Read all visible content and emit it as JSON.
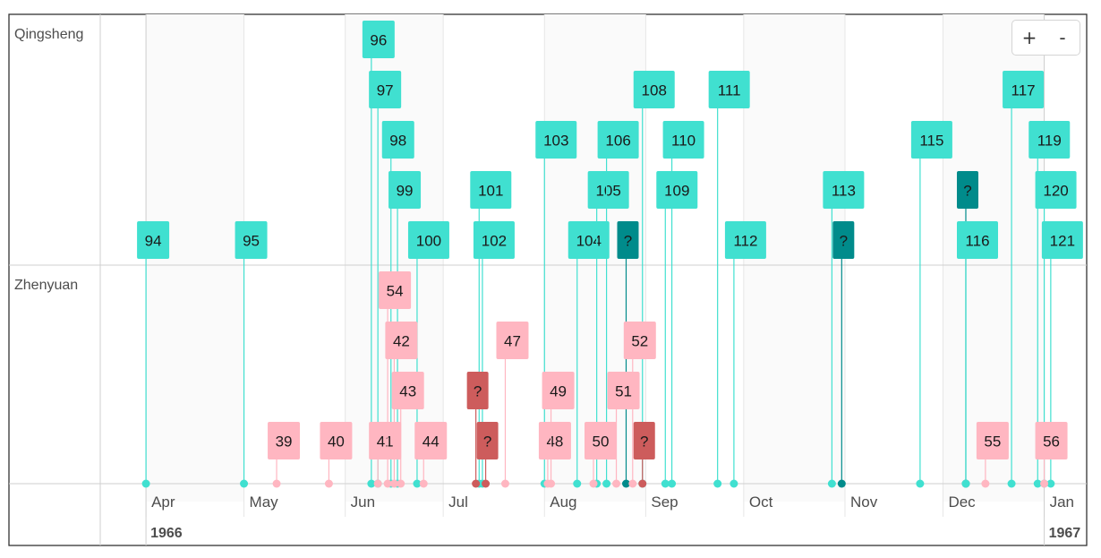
{
  "chart_data": {
    "type": "timeline",
    "groups": [
      "Qingsheng",
      "Zhenyuan"
    ],
    "x_range": [
      "1966-03-18",
      "1967-01-14"
    ],
    "month_ticks": [
      {
        "date": "1966-04-01",
        "label": "Apr"
      },
      {
        "date": "1966-05-01",
        "label": "May"
      },
      {
        "date": "1966-06-01",
        "label": "Jun"
      },
      {
        "date": "1966-07-01",
        "label": "Jul"
      },
      {
        "date": "1966-08-01",
        "label": "Aug"
      },
      {
        "date": "1966-09-01",
        "label": "Sep"
      },
      {
        "date": "1966-10-01",
        "label": "Oct"
      },
      {
        "date": "1966-11-01",
        "label": "Nov"
      },
      {
        "date": "1966-12-01",
        "label": "Dec"
      },
      {
        "date": "1967-01-01",
        "label": "Jan"
      }
    ],
    "year_ticks": [
      {
        "date": "1966-04-01",
        "label": "1966"
      },
      {
        "date": "1967-01-01",
        "label": "1967"
      }
    ],
    "colors": {
      "qingsheng": "#40e0d0",
      "qingsheng_unknown": "#008b8b",
      "zhenyuan": "#ffb6c1",
      "zhenyuan_unknown": "#cd5c5c"
    },
    "items": [
      {
        "group": "Qingsheng",
        "label": "94",
        "date": "1966-04-01",
        "level": 0
      },
      {
        "group": "Qingsheng",
        "label": "95",
        "date": "1966-05-01",
        "level": 0
      },
      {
        "group": "Qingsheng",
        "label": "96",
        "date": "1966-06-09",
        "level": 4
      },
      {
        "group": "Qingsheng",
        "label": "97",
        "date": "1966-06-11",
        "level": 3
      },
      {
        "group": "Qingsheng",
        "label": "98",
        "date": "1966-06-15",
        "level": 2
      },
      {
        "group": "Qingsheng",
        "label": "99",
        "date": "1966-06-17",
        "level": 1
      },
      {
        "group": "Qingsheng",
        "label": "100",
        "date": "1966-06-23",
        "level": 0
      },
      {
        "group": "Qingsheng",
        "label": "101",
        "date": "1966-07-12",
        "level": 1
      },
      {
        "group": "Qingsheng",
        "label": "102",
        "date": "1966-07-13",
        "level": 0
      },
      {
        "group": "Qingsheng",
        "label": "103",
        "date": "1966-08-01",
        "level": 2
      },
      {
        "group": "Qingsheng",
        "label": "104",
        "date": "1966-08-11",
        "level": 0
      },
      {
        "group": "Qingsheng",
        "label": "105",
        "date": "1966-08-17",
        "level": 1
      },
      {
        "group": "Qingsheng",
        "label": "106",
        "date": "1966-08-20",
        "level": 2
      },
      {
        "group": "Qingsheng",
        "label": "?",
        "date": "1966-08-26",
        "level": 0,
        "unknown": true
      },
      {
        "group": "Qingsheng",
        "label": "108",
        "date": "1966-08-31",
        "level": 3
      },
      {
        "group": "Qingsheng",
        "label": "109",
        "date": "1966-09-07",
        "level": 1
      },
      {
        "group": "Qingsheng",
        "label": "110",
        "date": "1966-09-09",
        "level": 2
      },
      {
        "group": "Qingsheng",
        "label": "111",
        "date": "1966-09-23",
        "level": 3
      },
      {
        "group": "Qingsheng",
        "label": "112",
        "date": "1966-09-28",
        "level": 0
      },
      {
        "group": "Qingsheng",
        "label": "113",
        "date": "1966-10-28",
        "level": 1
      },
      {
        "group": "Qingsheng",
        "label": "?",
        "date": "1966-10-31",
        "level": 0,
        "unknown": true
      },
      {
        "group": "Qingsheng",
        "label": "115",
        "date": "1966-11-24",
        "level": 2
      },
      {
        "group": "Qingsheng",
        "label": "?",
        "date": "1966-12-08",
        "level": 1,
        "unknown": true
      },
      {
        "group": "Qingsheng",
        "label": "116",
        "date": "1966-12-08",
        "level": 0
      },
      {
        "group": "Qingsheng",
        "label": "117",
        "date": "1966-12-22",
        "level": 3
      },
      {
        "group": "Qingsheng",
        "label": "119",
        "date": "1966-12-30",
        "level": 2
      },
      {
        "group": "Qingsheng",
        "label": "120",
        "date": "1967-01-01",
        "level": 1
      },
      {
        "group": "Qingsheng",
        "label": "121",
        "date": "1967-01-03",
        "level": 0
      },
      {
        "group": "Zhenyuan",
        "label": "39",
        "date": "1966-05-11",
        "level": 0
      },
      {
        "group": "Zhenyuan",
        "label": "40",
        "date": "1966-05-27",
        "level": 0
      },
      {
        "group": "Zhenyuan",
        "label": "41",
        "date": "1966-06-11",
        "level": 0
      },
      {
        "group": "Zhenyuan",
        "label": "54",
        "date": "1966-06-14",
        "level": 3
      },
      {
        "group": "Zhenyuan",
        "label": "42",
        "date": "1966-06-16",
        "level": 2
      },
      {
        "group": "Zhenyuan",
        "label": "43",
        "date": "1966-06-18",
        "level": 1
      },
      {
        "group": "Zhenyuan",
        "label": "44",
        "date": "1966-06-25",
        "level": 0
      },
      {
        "group": "Zhenyuan",
        "label": "?",
        "date": "1966-07-11",
        "level": 1,
        "unknown": true
      },
      {
        "group": "Zhenyuan",
        "label": "?",
        "date": "1966-07-14",
        "level": 0,
        "unknown": true
      },
      {
        "group": "Zhenyuan",
        "label": "47",
        "date": "1966-07-20",
        "level": 2
      },
      {
        "group": "Zhenyuan",
        "label": "48",
        "date": "1966-08-02",
        "level": 0
      },
      {
        "group": "Zhenyuan",
        "label": "49",
        "date": "1966-08-03",
        "level": 1
      },
      {
        "group": "Zhenyuan",
        "label": "50",
        "date": "1966-08-16",
        "level": 0
      },
      {
        "group": "Zhenyuan",
        "label": "51",
        "date": "1966-08-23",
        "level": 1
      },
      {
        "group": "Zhenyuan",
        "label": "52",
        "date": "1966-08-28",
        "level": 2
      },
      {
        "group": "Zhenyuan",
        "label": "?",
        "date": "1966-08-31",
        "level": 0,
        "unknown": true
      },
      {
        "group": "Zhenyuan",
        "label": "55",
        "date": "1966-12-14",
        "level": 0
      },
      {
        "group": "Zhenyuan",
        "label": "56",
        "date": "1967-01-01",
        "level": 0
      }
    ]
  },
  "controls": {
    "zoom_in_label": "+",
    "zoom_out_label": "-"
  }
}
